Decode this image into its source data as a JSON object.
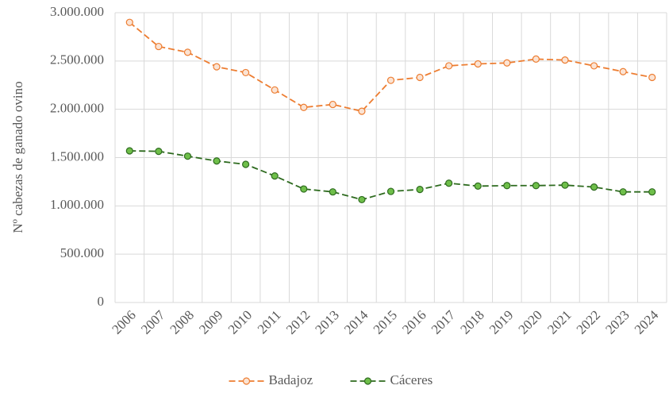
{
  "chart_data": {
    "type": "line",
    "y_label": "Nº cabezas de ganado ovino",
    "categories": [
      "2006",
      "2007",
      "2008",
      "2009",
      "2010",
      "2011",
      "2012",
      "2013",
      "2014",
      "2015",
      "2016",
      "2017",
      "2018",
      "2019",
      "2020",
      "2021",
      "2022",
      "2023",
      "2024"
    ],
    "series": [
      {
        "name": "Badajoz",
        "color": "#ed7d31",
        "marker_fill": "#fbe3d3",
        "values": [
          2900000,
          2650000,
          2590000,
          2440000,
          2380000,
          2200000,
          2020000,
          2050000,
          1980000,
          2300000,
          2330000,
          2450000,
          2470000,
          2480000,
          2520000,
          2510000,
          2450000,
          2390000,
          2330000
        ]
      },
      {
        "name": "Cáceres",
        "color": "#2e6b1f",
        "marker_fill": "#6fbf4a",
        "values": [
          1570000,
          1565000,
          1515000,
          1465000,
          1430000,
          1310000,
          1175000,
          1145000,
          1065000,
          1150000,
          1170000,
          1235000,
          1205000,
          1210000,
          1210000,
          1215000,
          1195000,
          1145000,
          1145000
        ]
      }
    ],
    "ylim": [
      0,
      3000000
    ],
    "yticks": [
      0,
      {
        "value": 500000,
        "label": "500.000"
      },
      {
        "value": 1000000,
        "label": "1.000.000"
      },
      {
        "value": 1500000,
        "label": "1.500.000"
      },
      {
        "value": 2000000,
        "label": "2.000.000"
      },
      {
        "value": 2500000,
        "label": "2.500.000"
      },
      {
        "value": 3000000,
        "label": "3.000.000"
      }
    ],
    "grid": true,
    "legend": "bottom"
  }
}
